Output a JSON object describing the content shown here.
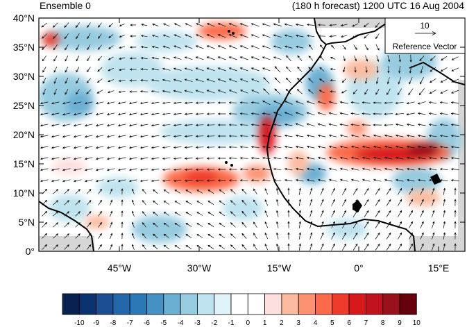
{
  "header": {
    "left": "Ensemble 0",
    "right": "(180 h forecast) 1200 UTC 16 Aug 2004"
  },
  "reference_vector": {
    "magnitude": "10",
    "label": "Reference Vector"
  },
  "axes": {
    "lat_ticks": [
      "40°N",
      "35°N",
      "30°N",
      "25°N",
      "20°N",
      "15°N",
      "10°N",
      "5°N",
      "0°"
    ],
    "lon_ticks": [
      "45°W",
      "30°W",
      "15°W",
      "0°",
      "15°E"
    ]
  },
  "colorbar": {
    "labels": [
      "-10",
      "-9",
      "-8",
      "-7",
      "-6",
      "-5",
      "-4",
      "-3",
      "-2",
      "-1",
      "0",
      "1",
      "2",
      "3",
      "4",
      "5",
      "6",
      "7",
      "8",
      "9",
      "10"
    ],
    "colors": [
      "#08214f",
      "#0b316e",
      "#1c4f92",
      "#2467a8",
      "#2c78b7",
      "#4591c4",
      "#6bafd3",
      "#96cbe0",
      "#bfe3ef",
      "#dff3f9",
      "#ffffff",
      "#ffffff",
      "#fde0dd",
      "#fcbba1",
      "#fc9272",
      "#fb6a4a",
      "#ef3b2c",
      "#d7191c",
      "#c1121f",
      "#99111c",
      "#67000d"
    ]
  },
  "map": {
    "ocean_color": "#ffffff",
    "missing_color": "#d6d6d6",
    "coast_color": "#000000",
    "lon_range": [
      -60,
      20
    ],
    "lat_range": [
      0,
      40
    ]
  }
}
